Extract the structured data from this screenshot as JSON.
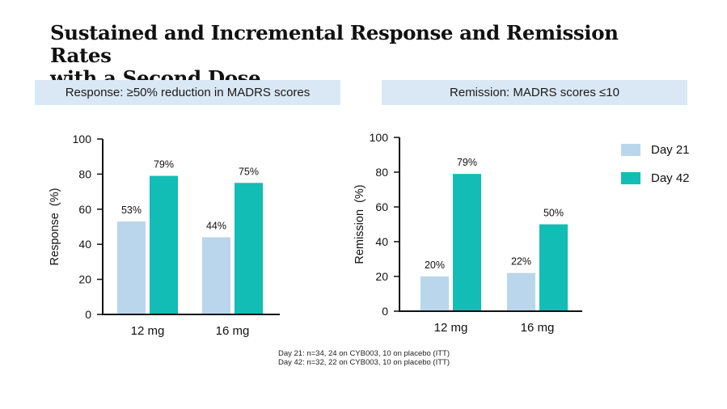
{
  "title_line1": "Sustained and Incremental Response and Remission Rates",
  "title_line2": "with a Second Dose",
  "colors": {
    "day21": "#bad6ec",
    "day42": "#12bdb5",
    "header_bg": "#dae8f5"
  },
  "legend": [
    "Day 21",
    "Day 42"
  ],
  "footnotes": [
    "Day 21: n=34, 24 on CYB003, 10 on placebo (ITT)",
    "Day 42: n=32, 22 on CYB003, 10 on placebo (ITT)"
  ],
  "chart_data": [
    {
      "type": "bar",
      "header": "Response: ≥50% reduction in MADRS scores",
      "categories": [
        "12 mg",
        "16 mg"
      ],
      "series": [
        {
          "name": "Day 21",
          "values": [
            53,
            44
          ],
          "labels": [
            "53%",
            "44%"
          ]
        },
        {
          "name": "Day 42",
          "values": [
            79,
            75
          ],
          "labels": [
            "79%",
            "75%"
          ]
        }
      ],
      "ylabel": "Response  (%)",
      "ylim": [
        0,
        100
      ],
      "yticks": [
        0,
        20,
        40,
        60,
        80,
        100
      ]
    },
    {
      "type": "bar",
      "header": "Remission: MADRS scores ≤10",
      "categories": [
        "12 mg",
        "16 mg"
      ],
      "series": [
        {
          "name": "Day 21",
          "values": [
            20,
            22
          ],
          "labels": [
            "20%",
            "22%"
          ]
        },
        {
          "name": "Day 42",
          "values": [
            79,
            50
          ],
          "labels": [
            "79%",
            "50%"
          ]
        }
      ],
      "ylabel": "Remission  (%)",
      "ylim": [
        0,
        100
      ],
      "yticks": [
        0,
        20,
        40,
        60,
        80,
        100
      ]
    }
  ]
}
